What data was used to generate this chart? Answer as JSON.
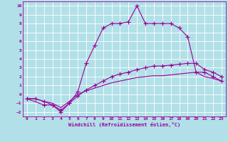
{
  "xlabel": "Windchill (Refroidissement éolien,°C)",
  "bg_color": "#b2e0e8",
  "grid_color": "#ffffff",
  "line_color": "#990099",
  "xlim": [
    -0.5,
    23.5
  ],
  "ylim": [
    -2.5,
    10.5
  ],
  "xticks": [
    0,
    1,
    2,
    3,
    4,
    5,
    6,
    7,
    8,
    9,
    10,
    11,
    12,
    13,
    14,
    15,
    16,
    17,
    18,
    19,
    20,
    21,
    22,
    23
  ],
  "yticks": [
    -2,
    -1,
    0,
    1,
    2,
    3,
    4,
    5,
    6,
    7,
    8,
    9,
    10
  ],
  "line1_x": [
    0,
    1,
    2,
    3,
    4,
    5,
    6,
    7,
    8,
    9,
    10,
    11,
    12,
    13,
    14,
    15,
    16,
    17,
    18,
    19,
    20,
    21,
    22,
    23
  ],
  "line1_y": [
    -0.5,
    -0.5,
    -0.8,
    -1.2,
    -2.0,
    -1.0,
    0.3,
    3.5,
    5.5,
    7.5,
    8.0,
    8.0,
    8.2,
    10.0,
    8.0,
    8.0,
    8.0,
    8.0,
    7.5,
    6.5,
    2.5,
    2.5,
    2.0,
    1.5
  ],
  "line2_x": [
    0,
    2,
    3,
    4,
    5,
    6,
    7,
    8,
    9,
    10,
    11,
    12,
    13,
    14,
    15,
    16,
    17,
    18,
    19,
    20,
    21,
    22,
    23
  ],
  "line2_y": [
    -0.5,
    -1.2,
    -1.2,
    -1.8,
    -1.0,
    -0.2,
    0.5,
    1.0,
    1.5,
    2.0,
    2.3,
    2.5,
    2.8,
    3.0,
    3.2,
    3.2,
    3.3,
    3.4,
    3.5,
    3.5,
    2.8,
    2.5,
    2.0
  ],
  "line3_x": [
    0,
    1,
    2,
    3,
    4,
    5,
    6,
    7,
    8,
    9,
    10,
    11,
    12,
    13,
    14,
    15,
    16,
    17,
    18,
    19,
    20,
    21,
    22,
    23
  ],
  "line3_y": [
    -0.5,
    -0.5,
    -0.8,
    -1.0,
    -1.5,
    -0.8,
    0.0,
    0.4,
    0.7,
    1.0,
    1.3,
    1.5,
    1.7,
    1.9,
    2.0,
    2.1,
    2.1,
    2.2,
    2.3,
    2.4,
    2.5,
    2.0,
    1.8,
    1.5
  ],
  "marker": "+",
  "markersize": 4,
  "linewidth": 0.8
}
